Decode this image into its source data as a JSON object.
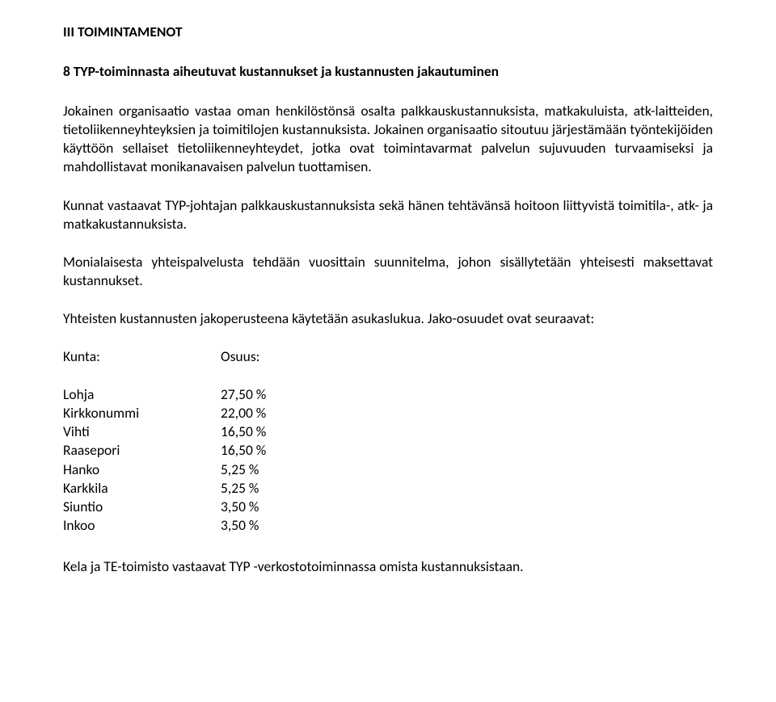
{
  "section_title": "III TOIMINTAMENOT",
  "subsection_title": "8  TYP-toiminnasta aiheutuvat kustannukset ja kustannusten jakautuminen",
  "para1": "Jokainen organisaatio vastaa oman henkilöstönsä osalta palkkauskustannuksista, matkakuluista, atk-laitteiden, tietoliikenneyhteyksien ja toimitilojen kustannuksista. Jokainen organisaatio sitoutuu järjestämään työntekijöiden käyttöön sellaiset tietoliikenneyhteydet, jotka ovat toimintavarmat palvelun sujuvuuden turvaamiseksi ja mahdollistavat monikanavaisen palvelun tuottamisen.",
  "para2": "Kunnat vastaavat TYP-johtajan palkkauskustannuksista sekä hänen tehtävänsä hoitoon liittyvistä toimitila-, atk- ja matkakustannuksista.",
  "para3": "Monialaisesta yhteispalvelusta tehdään vuosittain suunnitelma, johon sisällytetään yhteisesti maksettavat kustannukset.",
  "para4": "Yhteisten kustannusten jakoperusteena käytetään asukaslukua. Jako-osuudet ovat seuraavat:",
  "table": {
    "header_k": "Kunta:",
    "header_v": "Osuus:",
    "rows": [
      {
        "k": "Lohja",
        "v": "27,50 %"
      },
      {
        "k": "Kirkkonummi",
        "v": "22,00 %"
      },
      {
        "k": "Vihti",
        "v": "16,50 %"
      },
      {
        "k": "Raasepori",
        "v": "16,50 %"
      },
      {
        "k": "Hanko",
        "v": "  5,25 %"
      },
      {
        "k": "Karkkila",
        "v": "  5,25 %"
      },
      {
        "k": "Siuntio",
        "v": "  3,50 %"
      },
      {
        "k": "Inkoo",
        "v": "  3,50 %"
      }
    ]
  },
  "para5": "Kela ja TE-toimisto vastaavat TYP -verkostotoiminnassa omista kustannuksistaan."
}
